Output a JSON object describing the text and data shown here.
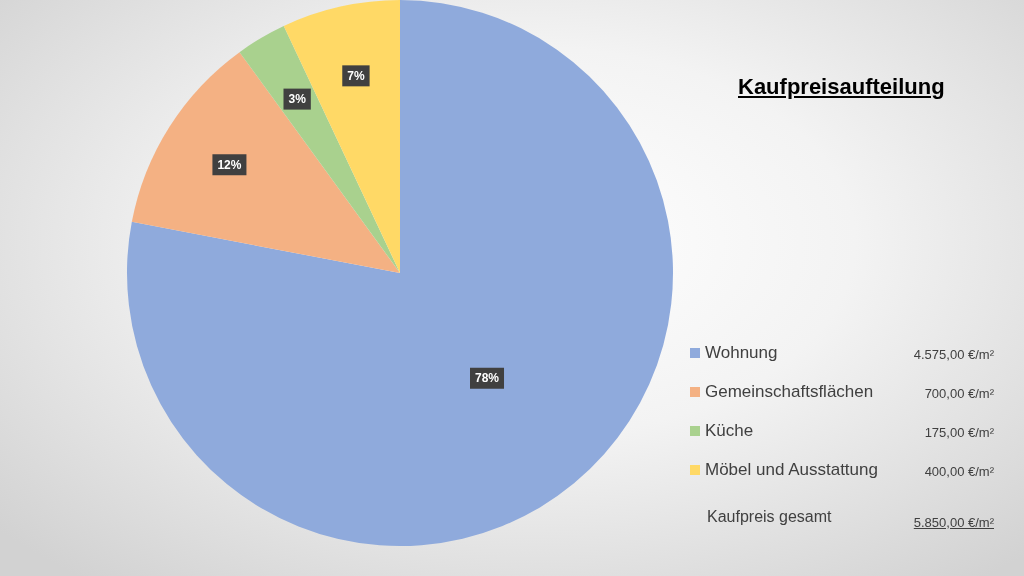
{
  "chart_data": {
    "type": "pie",
    "title": "Kaufpreisaufteilung",
    "categories": [
      "Wohnung",
      "Gemeinschaftsflächen",
      "Küche",
      "Möbel und Ausstattung"
    ],
    "values": [
      78,
      12,
      3,
      7
    ],
    "colors": [
      "#8faadc",
      "#f4b183",
      "#a9d18e",
      "#ffd966"
    ],
    "value_labels": [
      "78%",
      "12%",
      "3%",
      "7%"
    ],
    "legend": "bottom right",
    "annotations": [
      "4.575,00 €/m²",
      "700,00 €/m²",
      "175,00 €/m²",
      "400,00 €/m²",
      "Kaufpreis gesamt",
      "5.850,00 €/m²"
    ]
  }
}
